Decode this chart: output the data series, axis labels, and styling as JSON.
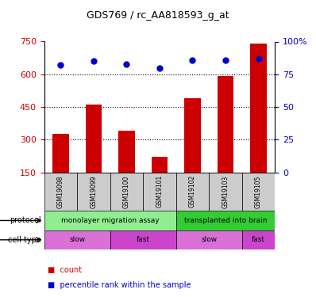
{
  "title": "GDS769 / rc_AA818593_g_at",
  "samples": [
    "GSM19098",
    "GSM19099",
    "GSM19100",
    "GSM19101",
    "GSM19102",
    "GSM19103",
    "GSM19105"
  ],
  "counts": [
    325,
    462,
    340,
    220,
    490,
    590,
    740
  ],
  "percentile_ranks": [
    82,
    85,
    83,
    80,
    86,
    86,
    87
  ],
  "ylim_left": [
    150,
    750
  ],
  "ylim_right": [
    0,
    100
  ],
  "yticks_left": [
    150,
    300,
    450,
    600,
    750
  ],
  "yticks_right": [
    0,
    25,
    50,
    75,
    100
  ],
  "ytick_right_labels": [
    "0",
    "25",
    "50",
    "75",
    "100%"
  ],
  "bar_color": "#cc0000",
  "dot_color": "#0000cc",
  "protocol_groups": [
    {
      "label": "monolayer migration assay",
      "start": 0,
      "end": 4,
      "color": "#90ee90"
    },
    {
      "label": "transplanted into brain",
      "start": 4,
      "end": 7,
      "color": "#32cd32"
    }
  ],
  "cell_type_groups": [
    {
      "label": "slow",
      "start": 0,
      "end": 2,
      "color": "#da70d6"
    },
    {
      "label": "fast",
      "start": 2,
      "end": 4,
      "color": "#cc44cc"
    },
    {
      "label": "slow",
      "start": 4,
      "end": 6,
      "color": "#da70d6"
    },
    {
      "label": "fast",
      "start": 6,
      "end": 7,
      "color": "#cc44cc"
    }
  ],
  "legend_count_label": "count",
  "legend_pct_label": "percentile rank within the sample",
  "protocol_label": "protocol",
  "cell_type_label": "cell type",
  "sample_box_color": "#cccccc",
  "left_axis_color": "#cc0000",
  "right_axis_color": "#0000cc",
  "grid_yticks": [
    300,
    450,
    600
  ]
}
